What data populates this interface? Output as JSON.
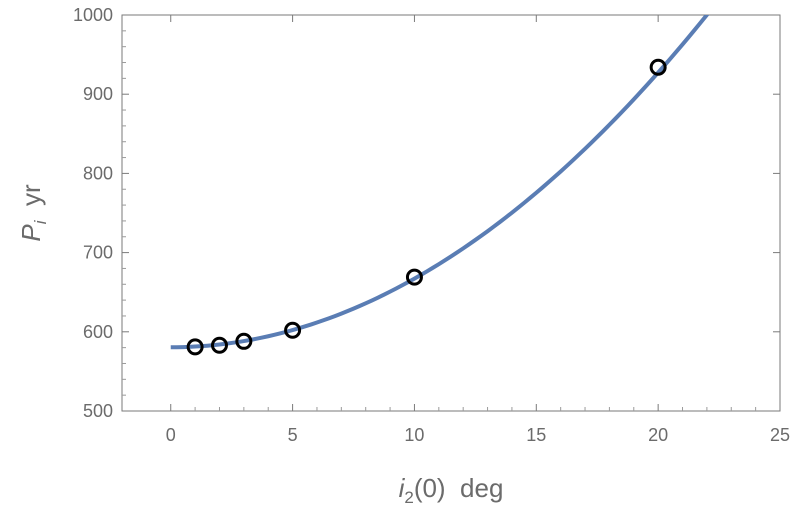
{
  "chart_data": {
    "type": "scatter",
    "title": "",
    "xlabel": {
      "main": "i",
      "sub": "2",
      "rest": "(0)  deg"
    },
    "ylabel": {
      "main": "P",
      "sub": "i",
      "rest": "  yr"
    },
    "xlim": [
      -2,
      25
    ],
    "ylim": [
      500,
      1000
    ],
    "x_ticks": [
      0,
      5,
      10,
      15,
      20,
      25
    ],
    "y_ticks": [
      500,
      600,
      700,
      800,
      900,
      1000
    ],
    "grid": false,
    "frame": true,
    "series": [
      {
        "kind": "points",
        "x": [
          1,
          2,
          3,
          5,
          10,
          20
        ],
        "y": [
          581,
          583,
          588,
          602,
          669,
          934
        ],
        "marker": "open-circle",
        "color": "#000000"
      },
      {
        "kind": "curve",
        "x": [
          0,
          1,
          2,
          3,
          4,
          5,
          6,
          7,
          8,
          9,
          10,
          11,
          12,
          13,
          14,
          15,
          16,
          17,
          18,
          19,
          20,
          21,
          22
        ],
        "y": [
          580,
          581,
          583,
          587,
          593,
          601,
          610,
          621,
          634,
          650,
          669,
          690,
          712,
          736,
          762,
          791,
          822,
          854,
          888,
          924,
          934,
          972,
          1012
        ],
        "color": "#5a7db4"
      }
    ]
  }
}
